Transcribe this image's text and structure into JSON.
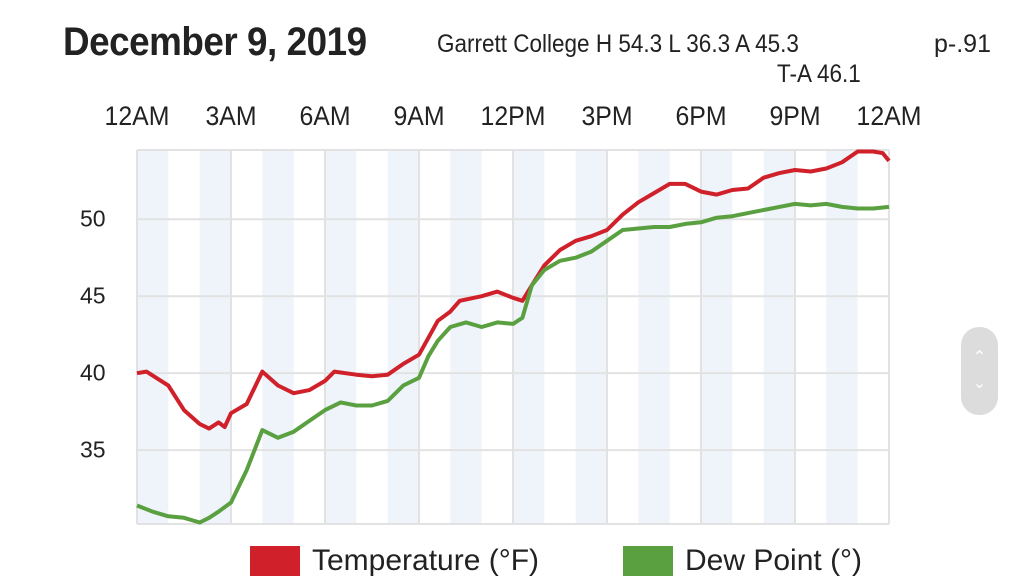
{
  "header": {
    "date": "December 9, 2019",
    "station_summary": "Garrett College H 54.3 L 36.3 A 45.3",
    "p_value": "p-.91",
    "t_a": "T-A 46.1"
  },
  "chart_data": {
    "type": "line",
    "title": "December 9, 2019",
    "xlabel": "",
    "ylabel": "",
    "x_ticks": [
      "12AM",
      "3AM",
      "6AM",
      "9AM",
      "12PM",
      "3PM",
      "6PM",
      "9PM",
      "12AM"
    ],
    "y_ticks": [
      35,
      40,
      45,
      50
    ],
    "y_tick_labels": [
      "35",
      "40",
      "45",
      "50"
    ],
    "xlim": [
      0,
      24
    ],
    "ylim": [
      30.2,
      54.5
    ],
    "grid": true,
    "legend_position": "bottom",
    "colors": {
      "temperature": "#d0202a",
      "dew_point": "#5aa040",
      "band": "#eef4fa",
      "grid": "#e2e2e2"
    },
    "series": [
      {
        "name": "Temperature (°F)",
        "x": [
          0,
          0.3,
          1,
          1.5,
          2,
          2.3,
          2.6,
          2.8,
          3,
          3.5,
          4,
          4.5,
          5,
          5.5,
          6,
          6.3,
          7,
          7.5,
          8,
          8.5,
          9,
          9.3,
          9.6,
          10,
          10.3,
          11,
          11.5,
          12,
          12.3,
          12.6,
          13,
          13.5,
          14,
          14.5,
          15,
          15.5,
          16,
          16.5,
          17,
          17.5,
          18,
          18.5,
          19,
          19.5,
          20,
          20.5,
          21,
          21.5,
          22,
          22.5,
          23,
          23.5,
          23.8,
          24
        ],
        "values": [
          40.0,
          40.1,
          39.2,
          37.6,
          36.7,
          36.4,
          36.8,
          36.5,
          37.4,
          38.0,
          40.1,
          39.2,
          38.7,
          38.9,
          39.5,
          40.1,
          39.9,
          39.8,
          39.9,
          40.6,
          41.2,
          42.3,
          43.4,
          44.0,
          44.7,
          45.0,
          45.3,
          44.9,
          44.7,
          45.7,
          47.0,
          48.0,
          48.6,
          48.9,
          49.3,
          50.3,
          51.1,
          51.7,
          52.3,
          52.3,
          51.8,
          51.6,
          51.9,
          52.0,
          52.7,
          53.0,
          53.2,
          53.1,
          53.3,
          53.7,
          54.4,
          54.4,
          54.3,
          53.8
        ]
      },
      {
        "name": "Dew Point (°)",
        "x": [
          0,
          0.5,
          1,
          1.5,
          2,
          2.3,
          2.6,
          3,
          3.5,
          4,
          4.5,
          5,
          5.5,
          6,
          6.5,
          7,
          7.5,
          8,
          8.5,
          9,
          9.3,
          9.6,
          10,
          10.5,
          11,
          11.5,
          12,
          12.3,
          12.6,
          13,
          13.5,
          14,
          14.5,
          15,
          15.5,
          16,
          16.5,
          17,
          17.5,
          18,
          18.5,
          19,
          19.5,
          20,
          20.5,
          21,
          21.5,
          22,
          22.5,
          23,
          23.5,
          24
        ],
        "values": [
          31.4,
          31.0,
          30.7,
          30.6,
          30.3,
          30.6,
          31.0,
          31.6,
          33.7,
          36.3,
          35.8,
          36.2,
          36.9,
          37.6,
          38.1,
          37.9,
          37.9,
          38.2,
          39.2,
          39.7,
          41.1,
          42.1,
          43.0,
          43.3,
          43.0,
          43.3,
          43.2,
          43.6,
          45.7,
          46.7,
          47.3,
          47.5,
          47.9,
          48.6,
          49.3,
          49.4,
          49.5,
          49.5,
          49.7,
          49.8,
          50.1,
          50.2,
          50.4,
          50.6,
          50.8,
          51.0,
          50.9,
          51.0,
          50.8,
          50.7,
          50.7,
          50.8
        ]
      }
    ]
  },
  "scrollbar": {
    "up_icon": "chevron-up-icon",
    "down_icon": "chevron-down-icon"
  }
}
